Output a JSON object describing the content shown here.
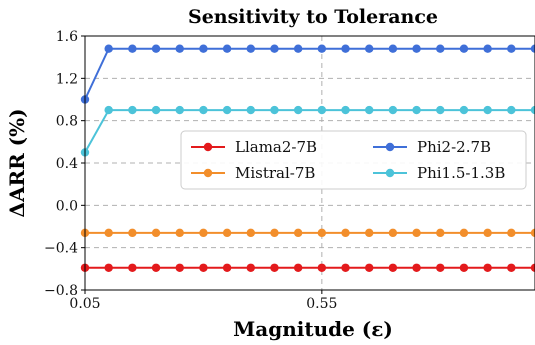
{
  "chart_data": {
    "type": "line",
    "title": "Sensitivity to Tolerance",
    "xlabel": "Magnitude (ε)",
    "ylabel": "ΔARR (%)",
    "x": [
      0.05,
      0.1,
      0.15,
      0.2,
      0.25,
      0.3,
      0.35,
      0.4,
      0.45,
      0.5,
      0.55,
      0.6,
      0.65,
      0.7,
      0.75,
      0.8,
      0.85,
      0.9,
      0.95,
      1.0
    ],
    "xlim": [
      0.05,
      1.0
    ],
    "ylim": [
      -0.8,
      1.6
    ],
    "xticks": [
      0.05,
      0.55
    ],
    "xtick_labels": [
      "0.05",
      "0.55"
    ],
    "yticks": [
      -0.8,
      -0.4,
      0.0,
      0.4,
      0.8,
      1.2,
      1.6
    ],
    "ytick_labels": [
      "−0.8",
      "−0.4",
      "0.0",
      "0.4",
      "0.8",
      "1.2",
      "1.6"
    ],
    "grid": true,
    "legend_position": "center-right",
    "series": [
      {
        "name": "Llama2-7B",
        "color": "#e31a1c",
        "values": [
          -0.59,
          -0.59,
          -0.59,
          -0.59,
          -0.59,
          -0.59,
          -0.59,
          -0.59,
          -0.59,
          -0.59,
          -0.59,
          -0.59,
          -0.59,
          -0.59,
          -0.59,
          -0.59,
          -0.59,
          -0.59,
          -0.59,
          -0.59
        ]
      },
      {
        "name": "Mistral-7B",
        "color": "#f28e2b",
        "values": [
          -0.26,
          -0.26,
          -0.26,
          -0.26,
          -0.26,
          -0.26,
          -0.26,
          -0.26,
          -0.26,
          -0.26,
          -0.26,
          -0.26,
          -0.26,
          -0.26,
          -0.26,
          -0.26,
          -0.26,
          -0.26,
          -0.26,
          -0.26
        ]
      },
      {
        "name": "Phi2-2.7B",
        "color": "#3f6fd8",
        "values": [
          1.0,
          1.48,
          1.48,
          1.48,
          1.48,
          1.48,
          1.48,
          1.48,
          1.48,
          1.48,
          1.48,
          1.48,
          1.48,
          1.48,
          1.48,
          1.48,
          1.48,
          1.48,
          1.48,
          1.48
        ]
      },
      {
        "name": "Phi1.5-1.3B",
        "color": "#4cc3d9",
        "values": [
          0.5,
          0.9,
          0.9,
          0.9,
          0.9,
          0.9,
          0.9,
          0.9,
          0.9,
          0.9,
          0.9,
          0.9,
          0.9,
          0.9,
          0.9,
          0.9,
          0.9,
          0.9,
          0.9,
          0.9
        ]
      }
    ]
  }
}
